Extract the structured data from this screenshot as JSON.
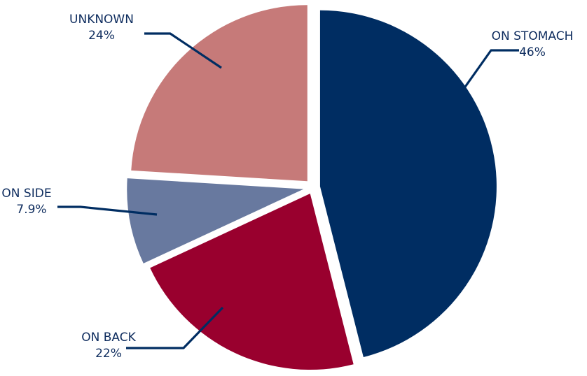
{
  "chart_data": {
    "type": "pie",
    "title": "",
    "slices": [
      {
        "label": "ON STOMACH",
        "value": 46,
        "value_label": "46%",
        "color": "#002d62"
      },
      {
        "label": "ON BACK",
        "value": 22,
        "value_label": "22%",
        "color": "#99002e"
      },
      {
        "label": "ON SIDE",
        "value": 7.9,
        "value_label": "7.9%",
        "color": "#68799f"
      },
      {
        "label": "UNKNOWN",
        "value": 24,
        "value_label": "24%",
        "color": "#c67a79"
      }
    ],
    "start": "12 o'clock",
    "direction": "clockwise",
    "exploded": true,
    "leader_line_color": "#002d62",
    "legend": "none"
  }
}
